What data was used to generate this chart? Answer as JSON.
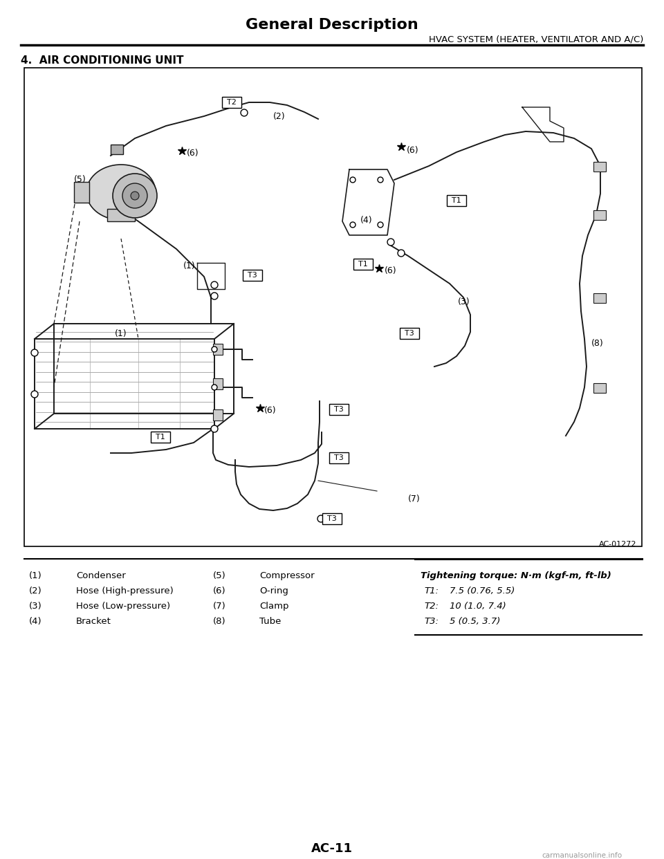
{
  "title": "General Description",
  "subtitle": "HVAC SYSTEM (HEATER, VENTILATOR AND A/C)",
  "section": "4.  AIR CONDITIONING UNIT",
  "diagram_ref": "AC-01272",
  "page_number": "AC-11",
  "parts_col1": [
    [
      "(1)",
      "Condenser"
    ],
    [
      "(2)",
      "Hose (High-pressure)"
    ],
    [
      "(3)",
      "Hose (Low-pressure)"
    ],
    [
      "(4)",
      "Bracket"
    ]
  ],
  "parts_col2": [
    [
      "(5)",
      "Compressor"
    ],
    [
      "(6)",
      "O-ring"
    ],
    [
      "(7)",
      "Clamp"
    ],
    [
      "(8)",
      "Tube"
    ]
  ],
  "torque_header": "Tightening torque: N·m (kgf-m, ft-lb)",
  "torque_values": [
    [
      "T1:",
      "7.5 (0.76, 5.5)"
    ],
    [
      "T2:",
      "10 (1.0, 7.4)"
    ],
    [
      "T3:",
      "5 (0.5, 3.7)"
    ]
  ],
  "bg_color": "#ffffff",
  "text_color": "#000000"
}
